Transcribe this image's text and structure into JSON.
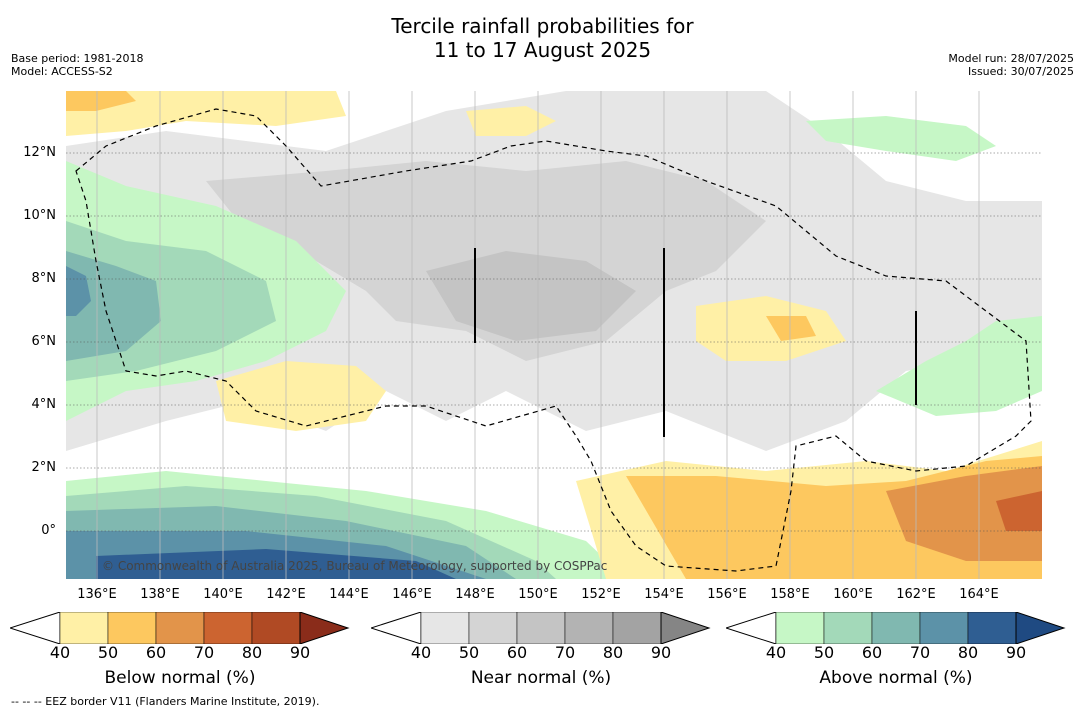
{
  "header": {
    "title_line1": "Tercile rainfall probabilities for",
    "title_line2": "11 to 17 August 2025",
    "base_period": "Base period: 1981-2018",
    "model": "Model: ACCESS-S2",
    "model_run": "Model run: 28/07/2025",
    "issued": "Issued: 30/07/2025"
  },
  "map": {
    "lat_labels": [
      "12°N",
      "10°N",
      "8°N",
      "6°N",
      "4°N",
      "2°N",
      "0°"
    ],
    "lon_labels": [
      "136°E",
      "138°E",
      "140°E",
      "142°E",
      "144°E",
      "146°E",
      "148°E",
      "150°E",
      "152°E",
      "154°E",
      "156°E",
      "158°E",
      "160°E",
      "162°E",
      "164°E"
    ],
    "lon_range": [
      134.0,
      165.7
    ],
    "lat_range": [
      -1.5,
      14.0
    ],
    "grid": true,
    "copyright": "© Commonwealth of Australia 2025, Bureau of Meteorology, supported by COSPPac"
  },
  "colorbars": [
    {
      "name": "Below normal (%)",
      "ticks": [
        "40",
        "50",
        "60",
        "70",
        "80",
        "90"
      ],
      "colors": [
        "#fff0a6",
        "#fdc85f",
        "#e2944a",
        "#cc6430",
        "#b04a24",
        "#8a2c1a"
      ]
    },
    {
      "name": "Near normal (%)",
      "ticks": [
        "40",
        "50",
        "60",
        "70",
        "80",
        "90"
      ],
      "colors": [
        "#e6e6e6",
        "#d4d4d4",
        "#c4c4c4",
        "#b3b3b3",
        "#a3a3a3",
        "#858585"
      ]
    },
    {
      "name": "Above normal (%)",
      "ticks": [
        "40",
        "50",
        "60",
        "70",
        "80",
        "90"
      ],
      "colors": [
        "#c6f7c6",
        "#a3d9b9",
        "#80b8b0",
        "#5c92a8",
        "#2f5e92",
        "#1f4a82"
      ]
    }
  ],
  "footnote": "--  --  -- EEZ border V11 (Flanders Marine Institute, 2019)."
}
